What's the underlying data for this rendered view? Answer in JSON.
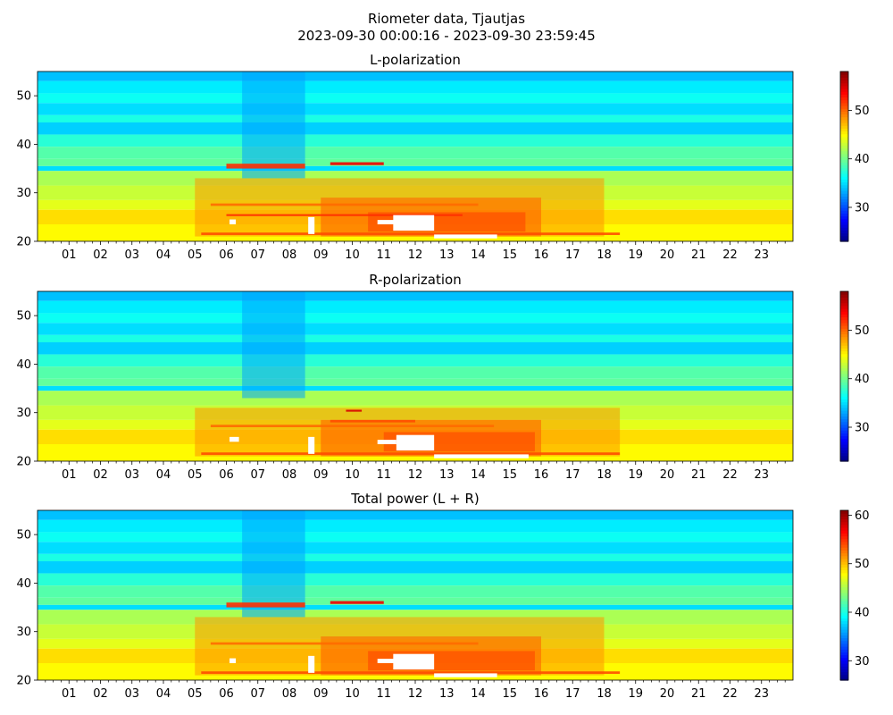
{
  "figure": {
    "title_line1": "Riometer data, Tjautjas",
    "title_line2": "2023-09-30 00:00:16 - 2023-09-30 23:59:45"
  },
  "chart_data": [
    {
      "type": "heatmap",
      "title": "L-polarization",
      "xlabel": "",
      "ylabel": "",
      "x_unit": "hour of day",
      "xlim": [
        0,
        24
      ],
      "ylim": [
        20,
        55
      ],
      "x_tick_labels": [
        "01",
        "02",
        "03",
        "04",
        "05",
        "06",
        "07",
        "08",
        "09",
        "10",
        "11",
        "12",
        "13",
        "14",
        "15",
        "16",
        "17",
        "18",
        "19",
        "20",
        "21",
        "22",
        "23"
      ],
      "x_tick_values": [
        1,
        2,
        3,
        4,
        5,
        6,
        7,
        8,
        9,
        10,
        11,
        12,
        13,
        14,
        15,
        16,
        17,
        18,
        19,
        20,
        21,
        22,
        23
      ],
      "y_ticks": [
        20,
        30,
        40,
        50
      ],
      "colorbar": {
        "colormap": "jet",
        "range": [
          23,
          58
        ],
        "ticks": [
          30,
          40,
          50
        ]
      },
      "rows": [
        {
          "y": [
            53,
            55
          ],
          "value": 34
        },
        {
          "y": [
            50.5,
            53
          ],
          "value": 35.5
        },
        {
          "y": [
            48.5,
            50.5
          ],
          "value": 36.5
        },
        {
          "y": [
            46,
            48.5
          ],
          "value": 35
        },
        {
          "y": [
            44.5,
            46
          ],
          "value": 37
        },
        {
          "y": [
            42,
            44.5
          ],
          "value": 34.5
        },
        {
          "y": [
            39.5,
            42
          ],
          "value": 37.5
        },
        {
          "y": [
            37,
            39.5
          ],
          "value": 39
        },
        {
          "y": [
            35.5,
            37
          ],
          "value": 39.5
        },
        {
          "y": [
            34.5,
            35.5
          ],
          "value": 35
        },
        {
          "y": [
            31.5,
            34.5
          ],
          "value": 42
        },
        {
          "y": [
            28.5,
            31.5
          ],
          "value": 43
        },
        {
          "y": [
            26.5,
            28.5
          ],
          "value": 44
        },
        {
          "y": [
            23.5,
            26.5
          ],
          "value": 46
        },
        {
          "y": [
            20,
            23.5
          ],
          "value": 45
        }
      ],
      "features": [
        {
          "kind": "band",
          "x": [
            5,
            18
          ],
          "y": [
            21,
            33
          ],
          "value": 48.5
        },
        {
          "kind": "band",
          "x": [
            9,
            16
          ],
          "y": [
            21,
            29
          ],
          "value": 50.5
        },
        {
          "kind": "band",
          "x": [
            10.5,
            15.5
          ],
          "y": [
            22,
            26
          ],
          "value": 51.5
        },
        {
          "kind": "band",
          "x": [
            6.5,
            8.5
          ],
          "y": [
            33,
            56
          ],
          "value": 33
        },
        {
          "kind": "streak",
          "x": [
            6,
            8.5
          ],
          "y": [
            35,
            36
          ],
          "value": 52
        },
        {
          "kind": "streak",
          "x": [
            9.3,
            11
          ],
          "y": [
            35.7,
            36.3
          ],
          "value": 54
        },
        {
          "kind": "streak",
          "x": [
            5.2,
            18.5
          ],
          "y": [
            21.3,
            21.8
          ],
          "value": 51
        },
        {
          "kind": "streak",
          "x": [
            5.5,
            14
          ],
          "y": [
            27.3,
            27.8
          ],
          "value": 50
        },
        {
          "kind": "streak",
          "x": [
            6,
            13.5
          ],
          "y": [
            25.2,
            25.6
          ],
          "value": 52
        },
        {
          "kind": "gap",
          "x": [
            11.3,
            12.6
          ],
          "y": [
            22.2,
            25.4
          ]
        },
        {
          "kind": "gap",
          "x": [
            10.8,
            11.4
          ],
          "y": [
            23.5,
            24.4
          ]
        },
        {
          "kind": "gap",
          "x": [
            12.6,
            14.6
          ],
          "y": [
            20.6,
            21.4
          ]
        },
        {
          "kind": "gap",
          "x": [
            8.6,
            8.8
          ],
          "y": [
            21.5,
            25
          ]
        },
        {
          "kind": "gap",
          "x": [
            6.1,
            6.3
          ],
          "y": [
            23.5,
            24.5
          ]
        }
      ]
    },
    {
      "type": "heatmap",
      "title": "R-polarization",
      "xlabel": "",
      "ylabel": "",
      "x_unit": "hour of day",
      "xlim": [
        0,
        24
      ],
      "ylim": [
        20,
        55
      ],
      "x_tick_labels": [
        "01",
        "02",
        "03",
        "04",
        "05",
        "06",
        "07",
        "08",
        "09",
        "10",
        "11",
        "12",
        "13",
        "14",
        "15",
        "16",
        "17",
        "18",
        "19",
        "20",
        "21",
        "22",
        "23"
      ],
      "x_tick_values": [
        1,
        2,
        3,
        4,
        5,
        6,
        7,
        8,
        9,
        10,
        11,
        12,
        13,
        14,
        15,
        16,
        17,
        18,
        19,
        20,
        21,
        22,
        23
      ],
      "y_ticks": [
        20,
        30,
        40,
        50
      ],
      "colorbar": {
        "colormap": "jet",
        "range": [
          23,
          58
        ],
        "ticks": [
          30,
          40,
          50
        ]
      },
      "rows": [
        {
          "y": [
            53,
            55
          ],
          "value": 34
        },
        {
          "y": [
            50.5,
            53
          ],
          "value": 35.5
        },
        {
          "y": [
            48.5,
            50.5
          ],
          "value": 36.5
        },
        {
          "y": [
            46,
            48.5
          ],
          "value": 35
        },
        {
          "y": [
            44.5,
            46
          ],
          "value": 37
        },
        {
          "y": [
            42,
            44.5
          ],
          "value": 34.5
        },
        {
          "y": [
            39.5,
            42
          ],
          "value": 37.5
        },
        {
          "y": [
            37,
            39.5
          ],
          "value": 39
        },
        {
          "y": [
            35.5,
            37
          ],
          "value": 39.5
        },
        {
          "y": [
            34.5,
            35.5
          ],
          "value": 35
        },
        {
          "y": [
            31.5,
            34.5
          ],
          "value": 42
        },
        {
          "y": [
            28.5,
            31.5
          ],
          "value": 43
        },
        {
          "y": [
            26.5,
            28.5
          ],
          "value": 44
        },
        {
          "y": [
            23.5,
            26.5
          ],
          "value": 46
        },
        {
          "y": [
            20,
            23.5
          ],
          "value": 45
        }
      ],
      "features": [
        {
          "kind": "band",
          "x": [
            5,
            18.5
          ],
          "y": [
            21,
            31
          ],
          "value": 48.5
        },
        {
          "kind": "band",
          "x": [
            9,
            16
          ],
          "y": [
            21,
            28.5
          ],
          "value": 50.5
        },
        {
          "kind": "band",
          "x": [
            11,
            15.8
          ],
          "y": [
            22,
            26
          ],
          "value": 51.5
        },
        {
          "kind": "band",
          "x": [
            6.5,
            8.5
          ],
          "y": [
            33,
            56
          ],
          "value": 33
        },
        {
          "kind": "streak",
          "x": [
            9.3,
            12
          ],
          "y": [
            28,
            28.5
          ],
          "value": 51
        },
        {
          "kind": "streak",
          "x": [
            5.2,
            18.5
          ],
          "y": [
            21.3,
            21.8
          ],
          "value": 51
        },
        {
          "kind": "streak",
          "x": [
            5.5,
            14.5
          ],
          "y": [
            27,
            27.5
          ],
          "value": 50
        },
        {
          "kind": "streak",
          "x": [
            9.8,
            10.3
          ],
          "y": [
            30.2,
            30.6
          ],
          "value": 55
        },
        {
          "kind": "gap",
          "x": [
            11.4,
            12.6
          ],
          "y": [
            22.2,
            25.4
          ]
        },
        {
          "kind": "gap",
          "x": [
            10.8,
            11.4
          ],
          "y": [
            23.5,
            24.4
          ]
        },
        {
          "kind": "gap",
          "x": [
            12.6,
            15.6
          ],
          "y": [
            20.6,
            21.4
          ]
        },
        {
          "kind": "gap",
          "x": [
            6.1,
            6.4
          ],
          "y": [
            24,
            25
          ]
        },
        {
          "kind": "gap",
          "x": [
            8.6,
            8.8
          ],
          "y": [
            21.5,
            25
          ]
        }
      ]
    },
    {
      "type": "heatmap",
      "title": "Total power (L + R)",
      "xlabel": "",
      "ylabel": "",
      "x_unit": "hour of day",
      "xlim": [
        0,
        24
      ],
      "ylim": [
        20,
        55
      ],
      "x_tick_labels": [
        "01",
        "02",
        "03",
        "04",
        "05",
        "06",
        "07",
        "08",
        "09",
        "10",
        "11",
        "12",
        "13",
        "14",
        "15",
        "16",
        "17",
        "18",
        "19",
        "20",
        "21",
        "22",
        "23"
      ],
      "x_tick_values": [
        1,
        2,
        3,
        4,
        5,
        6,
        7,
        8,
        9,
        10,
        11,
        12,
        13,
        14,
        15,
        16,
        17,
        18,
        19,
        20,
        21,
        22,
        23
      ],
      "y_ticks": [
        20,
        30,
        40,
        50
      ],
      "colorbar": {
        "colormap": "jet",
        "range": [
          26,
          61
        ],
        "ticks": [
          30,
          40,
          50,
          60
        ]
      },
      "rows": [
        {
          "y": [
            53,
            55
          ],
          "value": 37
        },
        {
          "y": [
            50.5,
            53
          ],
          "value": 38.5
        },
        {
          "y": [
            48.5,
            50.5
          ],
          "value": 39.5
        },
        {
          "y": [
            46,
            48.5
          ],
          "value": 38
        },
        {
          "y": [
            44.5,
            46
          ],
          "value": 40
        },
        {
          "y": [
            42,
            44.5
          ],
          "value": 37.5
        },
        {
          "y": [
            39.5,
            42
          ],
          "value": 40.5
        },
        {
          "y": [
            37,
            39.5
          ],
          "value": 42
        },
        {
          "y": [
            35.5,
            37
          ],
          "value": 42.5
        },
        {
          "y": [
            34.5,
            35.5
          ],
          "value": 38
        },
        {
          "y": [
            31.5,
            34.5
          ],
          "value": 45
        },
        {
          "y": [
            28.5,
            31.5
          ],
          "value": 46
        },
        {
          "y": [
            26.5,
            28.5
          ],
          "value": 47
        },
        {
          "y": [
            23.5,
            26.5
          ],
          "value": 49
        },
        {
          "y": [
            20,
            23.5
          ],
          "value": 48
        }
      ],
      "features": [
        {
          "kind": "band",
          "x": [
            5,
            18
          ],
          "y": [
            21,
            33
          ],
          "value": 51.5
        },
        {
          "kind": "band",
          "x": [
            9,
            16
          ],
          "y": [
            21,
            29
          ],
          "value": 53.5
        },
        {
          "kind": "band",
          "x": [
            10.5,
            15.8
          ],
          "y": [
            22,
            26
          ],
          "value": 54.5
        },
        {
          "kind": "band",
          "x": [
            6.5,
            8.5
          ],
          "y": [
            33,
            56
          ],
          "value": 36
        },
        {
          "kind": "streak",
          "x": [
            6,
            8.5
          ],
          "y": [
            35,
            36
          ],
          "value": 55
        },
        {
          "kind": "streak",
          "x": [
            9.3,
            11
          ],
          "y": [
            35.7,
            36.3
          ],
          "value": 57
        },
        {
          "kind": "streak",
          "x": [
            5.2,
            18.5
          ],
          "y": [
            21.3,
            21.8
          ],
          "value": 54
        },
        {
          "kind": "streak",
          "x": [
            5.5,
            14
          ],
          "y": [
            27.3,
            27.8
          ],
          "value": 53
        },
        {
          "kind": "gap",
          "x": [
            11.3,
            12.6
          ],
          "y": [
            22.2,
            25.4
          ]
        },
        {
          "kind": "gap",
          "x": [
            10.8,
            11.4
          ],
          "y": [
            23.5,
            24.4
          ]
        },
        {
          "kind": "gap",
          "x": [
            12.6,
            14.6
          ],
          "y": [
            20.6,
            21.4
          ]
        },
        {
          "kind": "gap",
          "x": [
            8.6,
            8.8
          ],
          "y": [
            21.5,
            25
          ]
        },
        {
          "kind": "gap",
          "x": [
            6.1,
            6.3
          ],
          "y": [
            23.5,
            24.5
          ]
        }
      ]
    }
  ]
}
